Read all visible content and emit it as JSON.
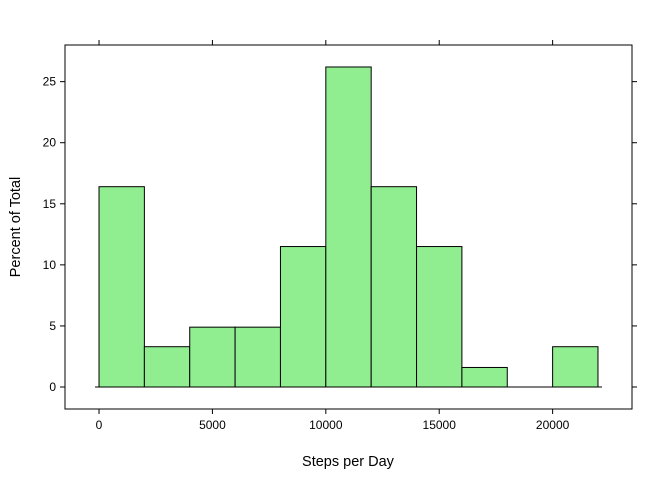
{
  "chart_data": {
    "type": "bar",
    "title": "",
    "xlabel": "Steps per Day",
    "ylabel": "Percent of Total",
    "bar_color": "#90EE90",
    "bar_stroke": "#000000",
    "grid": false,
    "xlim": [
      -1500,
      23500
    ],
    "ylim": [
      -1.8,
      28.0
    ],
    "x_ticks": [
      0,
      5000,
      10000,
      15000,
      20000
    ],
    "x_tick_labels": [
      "0",
      "5000",
      "10000",
      "15000",
      "20000"
    ],
    "y_ticks": [
      0,
      5,
      10,
      15,
      20,
      25
    ],
    "y_tick_labels": [
      "0",
      "5",
      "10",
      "15",
      "20",
      "25"
    ],
    "baseline": [
      0,
      22000
    ],
    "bins": [
      {
        "x0": 0,
        "x1": 2000,
        "value": 16.4
      },
      {
        "x0": 2000,
        "x1": 4000,
        "value": 3.3
      },
      {
        "x0": 4000,
        "x1": 6000,
        "value": 4.9
      },
      {
        "x0": 6000,
        "x1": 8000,
        "value": 4.9
      },
      {
        "x0": 8000,
        "x1": 10000,
        "value": 11.5
      },
      {
        "x0": 10000,
        "x1": 12000,
        "value": 26.2
      },
      {
        "x0": 12000,
        "x1": 14000,
        "value": 16.4
      },
      {
        "x0": 14000,
        "x1": 16000,
        "value": 11.5
      },
      {
        "x0": 16000,
        "x1": 18000,
        "value": 1.6
      },
      {
        "x0": 18000,
        "x1": 20000,
        "value": 0
      },
      {
        "x0": 20000,
        "x1": 22000,
        "value": 3.3
      }
    ]
  }
}
